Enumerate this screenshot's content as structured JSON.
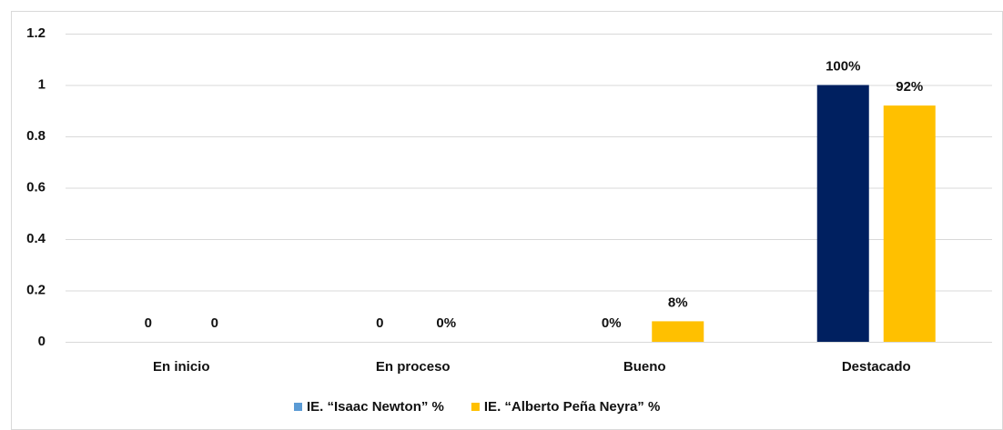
{
  "chart_data": {
    "type": "bar",
    "categories": [
      "En inicio",
      "En proceso",
      "Bueno",
      "Destacado"
    ],
    "series": [
      {
        "name": "IE. “Isaac Newton” %",
        "color": "#002060",
        "legend_color": "#5b9bd5",
        "values": [
          0,
          0,
          0,
          1
        ],
        "value_labels": [
          "0",
          "0",
          "0%",
          "100%"
        ]
      },
      {
        "name": "IE. “Alberto Peña Neyra” %",
        "color": "#ffc000",
        "values": [
          0,
          0,
          0.08,
          0.92
        ],
        "value_labels": [
          "0",
          "0%",
          "8%",
          "92%"
        ]
      }
    ],
    "ylim": [
      0,
      1.2
    ],
    "yticks": [
      0,
      0.2,
      0.4,
      0.6,
      0.8,
      1,
      1.2
    ],
    "grid": true,
    "legend": "bottom"
  }
}
